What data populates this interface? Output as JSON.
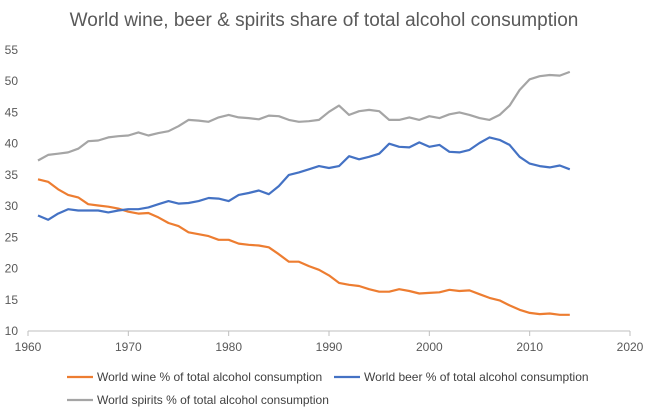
{
  "chart_data": {
    "type": "line",
    "title": "World wine, beer & spirits share of total alcohol consumption",
    "xlabel": "",
    "ylabel": "",
    "xlim": [
      1960,
      2020
    ],
    "ylim": [
      10,
      55
    ],
    "x_ticks": [
      "1960",
      "1970",
      "1980",
      "1990",
      "2000",
      "2010",
      "2020"
    ],
    "y_ticks": [
      "10",
      "15",
      "20",
      "25",
      "30",
      "35",
      "40",
      "45",
      "50",
      "55"
    ],
    "grid": false,
    "legend_position": "bottom",
    "x": [
      1961,
      1962,
      1963,
      1964,
      1965,
      1966,
      1967,
      1968,
      1969,
      1970,
      1971,
      1972,
      1973,
      1974,
      1975,
      1976,
      1977,
      1978,
      1979,
      1980,
      1981,
      1982,
      1983,
      1984,
      1985,
      1986,
      1987,
      1988,
      1989,
      1990,
      1991,
      1992,
      1993,
      1994,
      1995,
      1996,
      1997,
      1998,
      1999,
      2000,
      2001,
      2002,
      2003,
      2004,
      2005,
      2006,
      2007,
      2008,
      2009,
      2010,
      2011,
      2012,
      2013,
      2014
    ],
    "series": [
      {
        "name": "World wine % of total alcohol consumption",
        "color": "#ED7D31",
        "values": [
          34.3,
          33.9,
          32.7,
          31.8,
          31.4,
          30.3,
          30.1,
          29.9,
          29.6,
          29.1,
          28.8,
          28.9,
          28.2,
          27.3,
          26.8,
          25.8,
          25.5,
          25.2,
          24.6,
          24.6,
          24.0,
          23.8,
          23.7,
          23.4,
          22.3,
          21.1,
          21.1,
          20.4,
          19.8,
          18.9,
          17.7,
          17.4,
          17.2,
          16.7,
          16.3,
          16.3,
          16.7,
          16.4,
          16.0,
          16.1,
          16.2,
          16.6,
          16.4,
          16.5,
          15.9,
          15.3,
          14.9,
          14.1,
          13.4,
          12.9,
          12.7,
          12.8,
          12.6,
          12.6
        ]
      },
      {
        "name": "World beer % of total alcohol consumption",
        "color": "#4472C4",
        "values": [
          28.5,
          27.8,
          28.8,
          29.5,
          29.3,
          29.3,
          29.3,
          29.0,
          29.3,
          29.5,
          29.5,
          29.8,
          30.3,
          30.8,
          30.4,
          30.5,
          30.8,
          31.3,
          31.2,
          30.8,
          31.8,
          32.1,
          32.5,
          31.9,
          33.2,
          35.0,
          35.4,
          35.9,
          36.4,
          36.1,
          36.4,
          38.0,
          37.5,
          37.9,
          38.4,
          40.0,
          39.5,
          39.4,
          40.2,
          39.5,
          39.8,
          38.7,
          38.6,
          39.0,
          40.1,
          41.0,
          40.6,
          39.8,
          37.9,
          36.8,
          36.4,
          36.2,
          36.5,
          35.9
        ]
      },
      {
        "name": "World spirits % of total alcohol consumption",
        "color": "#A5A5A5",
        "values": [
          37.3,
          38.2,
          38.4,
          38.6,
          39.2,
          40.4,
          40.5,
          41.0,
          41.2,
          41.3,
          41.8,
          41.3,
          41.7,
          42.0,
          42.8,
          43.8,
          43.7,
          43.5,
          44.2,
          44.6,
          44.2,
          44.1,
          43.9,
          44.5,
          44.4,
          43.8,
          43.5,
          43.6,
          43.8,
          45.1,
          46.1,
          44.6,
          45.2,
          45.4,
          45.2,
          43.8,
          43.8,
          44.2,
          43.8,
          44.4,
          44.1,
          44.7,
          45.0,
          44.6,
          44.1,
          43.8,
          44.6,
          46.1,
          48.6,
          50.3,
          50.8,
          51.0,
          50.9,
          51.5
        ]
      }
    ]
  }
}
